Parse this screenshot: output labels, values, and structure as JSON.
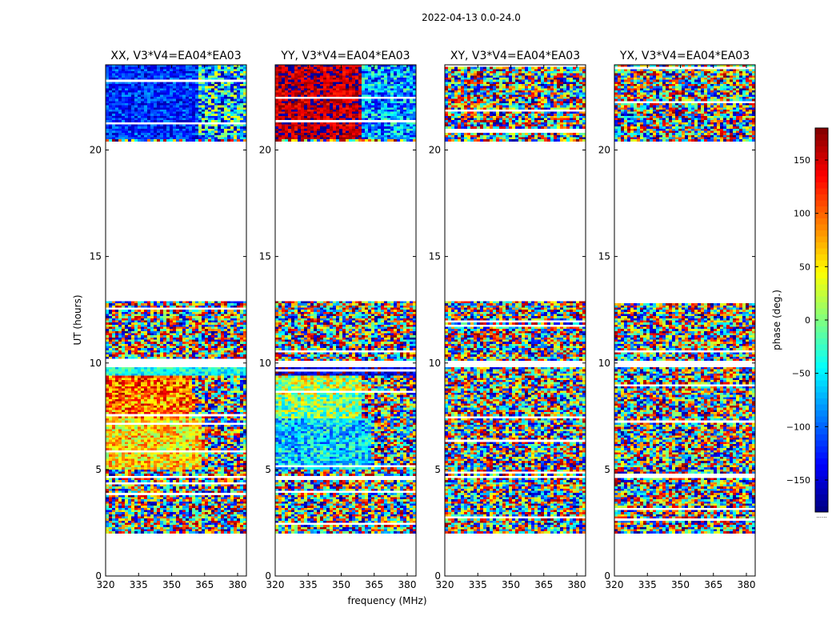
{
  "chart_data": {
    "type": "heatmap",
    "title": "2022-04-13 0.0-24.0",
    "xlabel": "frequency (MHz)",
    "ylabel": "UT (hours)",
    "xlim": [
      320,
      384
    ],
    "ylim": [
      0,
      24
    ],
    "x_ticks": [
      320,
      335,
      350,
      365,
      380
    ],
    "y_ticks": [
      0,
      5,
      10,
      15,
      20
    ],
    "colorbar": {
      "label": "phase (deg.)",
      "vmin": -180,
      "vmax": 180,
      "ticks": [
        -150,
        -100,
        -50,
        0,
        50,
        100,
        150
      ],
      "tick_labels": [
        "−150",
        "−100",
        "−50",
        "0",
        "50",
        "100",
        "150"
      ],
      "under_label": "......",
      "colormap": "jet"
    },
    "data_time_ranges_hours": [
      [
        1.95,
        4.55
      ],
      [
        4.75,
        9.85
      ],
      [
        10.05,
        12.95
      ],
      [
        20.45,
        24.0
      ]
    ],
    "flagged_time_ranges_hours": [
      [
        0,
        1.95
      ],
      [
        4.55,
        4.75
      ],
      [
        12.95,
        20.45
      ]
    ],
    "panels": [
      {
        "title": "XX, V3*V4=EA04*EA03",
        "coherent_phase_regions": [
          {
            "t": [
              20.5,
              24.0
            ],
            "f": [
              320,
              362
            ],
            "phase": -120,
            "spread": 45
          },
          {
            "t": [
              20.5,
              24.0
            ],
            "f": [
              362,
              384
            ],
            "phase": -60,
            "spread": 120
          },
          {
            "t": [
              5.0,
              7.4
            ],
            "f": [
              320,
              363
            ],
            "phase": 55,
            "spread": 60
          },
          {
            "t": [
              7.4,
              8.5
            ],
            "f": [
              320,
              360
            ],
            "phase": 90,
            "spread": 70
          },
          {
            "t": [
              8.5,
              9.4
            ],
            "f": [
              320,
              360
            ],
            "phase": 100,
            "spread": 70
          },
          {
            "t": [
              9.4,
              9.85
            ],
            "f": [
              320,
              384
            ],
            "phase": -40,
            "spread": 40
          }
        ]
      },
      {
        "title": "YY, V3*V4=EA04*EA03",
        "coherent_phase_regions": [
          {
            "t": [
              20.5,
              24.0
            ],
            "f": [
              320,
              360
            ],
            "phase": 160,
            "spread": 40
          },
          {
            "t": [
              20.5,
              24.0
            ],
            "f": [
              360,
              384
            ],
            "phase": -80,
            "spread": 80
          },
          {
            "t": [
              5.0,
              7.4
            ],
            "f": [
              320,
              363
            ],
            "phase": -60,
            "spread": 60
          },
          {
            "t": [
              7.4,
              8.5
            ],
            "f": [
              320,
              360
            ],
            "phase": 0,
            "spread": 70
          },
          {
            "t": [
              8.5,
              9.4
            ],
            "f": [
              320,
              360
            ],
            "phase": 20,
            "spread": 70
          },
          {
            "t": [
              9.4,
              9.85
            ],
            "f": [
              320,
              384
            ],
            "phase": -150,
            "spread": 40
          }
        ]
      },
      {
        "title": "XY, V3*V4=EA04*EA03",
        "coherent_phase_regions": []
      },
      {
        "title": "YX, V3*V4=EA04*EA03",
        "coherent_phase_regions": []
      }
    ]
  }
}
